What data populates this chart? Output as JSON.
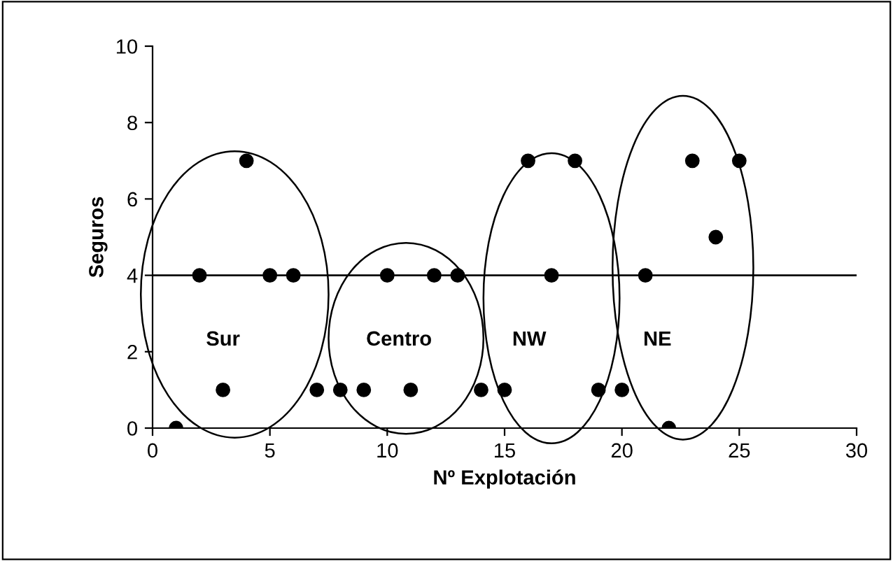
{
  "chart_data": {
    "type": "scatter",
    "xlabel": "Nº Explotación",
    "ylabel": "Seguros",
    "x": [
      1,
      2,
      3,
      4,
      5,
      6,
      7,
      8,
      9,
      10,
      11,
      12,
      13,
      14,
      15,
      16,
      17,
      18,
      19,
      20,
      21,
      22,
      23,
      24,
      25
    ],
    "values": [
      0,
      4,
      1,
      7,
      4,
      4,
      1,
      1,
      1,
      4,
      1,
      4,
      4,
      1,
      1,
      7,
      4,
      7,
      1,
      1,
      4,
      0,
      7,
      5,
      7
    ],
    "color": "#000000",
    "marker": "circle",
    "xlim": [
      0,
      30
    ],
    "xticks": [
      0,
      5,
      10,
      15,
      20,
      25,
      30
    ],
    "ylim": [
      0,
      10
    ],
    "yticks": [
      0,
      2,
      4,
      6,
      8,
      10
    ],
    "grid": false,
    "legend": false,
    "ref_lines": [
      {
        "axis": "y",
        "value": 4,
        "color": "#000000",
        "line_style": "solid"
      }
    ],
    "annotations": [
      "Sur",
      "Centro",
      "NW",
      "NE"
    ]
  }
}
